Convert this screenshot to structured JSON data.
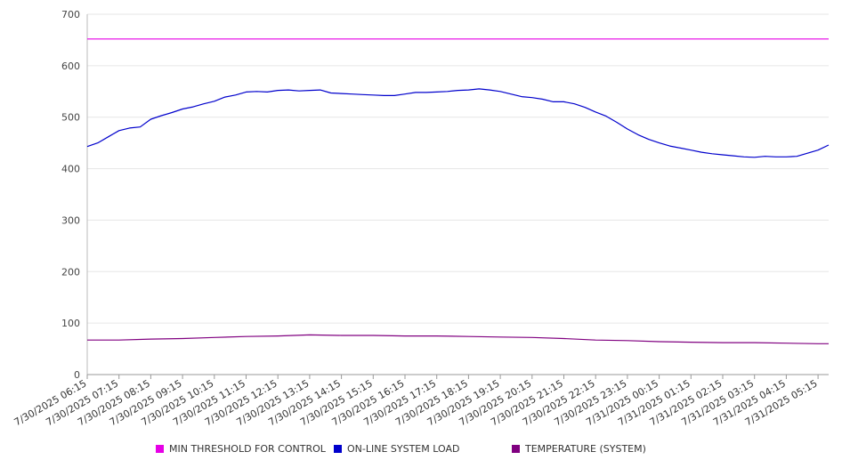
{
  "chart_data": {
    "type": "line",
    "title": "",
    "xlabel": "",
    "ylabel": "",
    "ylim": [
      0,
      700
    ],
    "yticks": [
      0,
      100,
      200,
      300,
      400,
      500,
      600,
      700
    ],
    "grid": true,
    "legend_position": "bottom",
    "x_range": [
      "7/30/2025 06:15",
      "7/31/2025 05:35"
    ],
    "x_tick_labels": [
      "7/30/2025 06:15",
      "7/30/2025 07:15",
      "7/30/2025 08:15",
      "7/30/2025 09:15",
      "7/30/2025 10:15",
      "7/30/2025 11:15",
      "7/30/2025 12:15",
      "7/30/2025 13:15",
      "7/30/2025 14:15",
      "7/30/2025 15:15",
      "7/30/2025 16:15",
      "7/30/2025 17:15",
      "7/30/2025 18:15",
      "7/30/2025 19:15",
      "7/30/2025 20:15",
      "7/30/2025 21:15",
      "7/30/2025 22:15",
      "7/30/2025 23:15",
      "7/31/2025 00:15",
      "7/31/2025 01:15",
      "7/31/2025 02:15",
      "7/31/2025 03:15",
      "7/31/2025 04:15",
      "7/31/2025 05:15"
    ],
    "series": [
      {
        "name": "MIN THRESHOLD FOR CONTROL",
        "color": "#e600e6",
        "points": [
          [
            "7/30/2025 06:15",
            652
          ],
          [
            "7/31/2025 05:35",
            652
          ]
        ]
      },
      {
        "name": "ON-LINE SYSTEM LOAD",
        "color": "#0000cc",
        "points": [
          [
            "7/30/2025 06:15",
            443
          ],
          [
            "7/30/2025 06:35",
            450
          ],
          [
            "7/30/2025 06:55",
            462
          ],
          [
            "7/30/2025 07:15",
            474
          ],
          [
            "7/30/2025 07:35",
            479
          ],
          [
            "7/30/2025 07:55",
            481
          ],
          [
            "7/30/2025 08:15",
            496
          ],
          [
            "7/30/2025 08:35",
            503
          ],
          [
            "7/30/2025 08:55",
            509
          ],
          [
            "7/30/2025 09:15",
            516
          ],
          [
            "7/30/2025 09:35",
            520
          ],
          [
            "7/30/2025 09:55",
            526
          ],
          [
            "7/30/2025 10:15",
            531
          ],
          [
            "7/30/2025 10:35",
            539
          ],
          [
            "7/30/2025 10:55",
            543
          ],
          [
            "7/30/2025 11:15",
            549
          ],
          [
            "7/30/2025 11:35",
            550
          ],
          [
            "7/30/2025 11:55",
            549
          ],
          [
            "7/30/2025 12:15",
            552
          ],
          [
            "7/30/2025 12:35",
            553
          ],
          [
            "7/30/2025 12:55",
            551
          ],
          [
            "7/30/2025 13:15",
            552
          ],
          [
            "7/30/2025 13:35",
            553
          ],
          [
            "7/30/2025 13:55",
            547
          ],
          [
            "7/30/2025 14:15",
            546
          ],
          [
            "7/30/2025 14:35",
            545
          ],
          [
            "7/30/2025 14:55",
            544
          ],
          [
            "7/30/2025 15:15",
            543
          ],
          [
            "7/30/2025 15:35",
            542
          ],
          [
            "7/30/2025 15:55",
            542
          ],
          [
            "7/30/2025 16:15",
            545
          ],
          [
            "7/30/2025 16:35",
            548
          ],
          [
            "7/30/2025 16:55",
            548
          ],
          [
            "7/30/2025 17:15",
            549
          ],
          [
            "7/30/2025 17:35",
            550
          ],
          [
            "7/30/2025 17:55",
            552
          ],
          [
            "7/30/2025 18:15",
            553
          ],
          [
            "7/30/2025 18:35",
            555
          ],
          [
            "7/30/2025 18:55",
            553
          ],
          [
            "7/30/2025 19:15",
            550
          ],
          [
            "7/30/2025 19:35",
            545
          ],
          [
            "7/30/2025 19:55",
            540
          ],
          [
            "7/30/2025 20:15",
            538
          ],
          [
            "7/30/2025 20:35",
            535
          ],
          [
            "7/30/2025 20:55",
            530
          ],
          [
            "7/30/2025 21:15",
            530
          ],
          [
            "7/30/2025 21:35",
            526
          ],
          [
            "7/30/2025 21:55",
            519
          ],
          [
            "7/30/2025 22:15",
            510
          ],
          [
            "7/30/2025 22:35",
            502
          ],
          [
            "7/30/2025 22:55",
            490
          ],
          [
            "7/30/2025 23:15",
            477
          ],
          [
            "7/30/2025 23:35",
            466
          ],
          [
            "7/30/2025 23:55",
            457
          ],
          [
            "7/31/2025 00:15",
            450
          ],
          [
            "7/31/2025 00:35",
            444
          ],
          [
            "7/31/2025 00:55",
            440
          ],
          [
            "7/31/2025 01:15",
            436
          ],
          [
            "7/31/2025 01:35",
            432
          ],
          [
            "7/31/2025 01:55",
            429
          ],
          [
            "7/31/2025 02:15",
            427
          ],
          [
            "7/31/2025 02:35",
            425
          ],
          [
            "7/31/2025 02:55",
            423
          ],
          [
            "7/31/2025 03:15",
            422
          ],
          [
            "7/31/2025 03:35",
            424
          ],
          [
            "7/31/2025 03:55",
            423
          ],
          [
            "7/31/2025 04:15",
            423
          ],
          [
            "7/31/2025 04:35",
            424
          ],
          [
            "7/31/2025 04:55",
            430
          ],
          [
            "7/31/2025 05:15",
            436
          ],
          [
            "7/31/2025 05:35",
            446
          ]
        ]
      },
      {
        "name": "TEMPERATURE (SYSTEM)",
        "color": "#800080",
        "points": [
          [
            "7/30/2025 06:15",
            67
          ],
          [
            "7/30/2025 07:15",
            67
          ],
          [
            "7/30/2025 08:15",
            69
          ],
          [
            "7/30/2025 09:15",
            70
          ],
          [
            "7/30/2025 10:15",
            72
          ],
          [
            "7/30/2025 11:15",
            74
          ],
          [
            "7/30/2025 12:15",
            75
          ],
          [
            "7/30/2025 13:15",
            77
          ],
          [
            "7/30/2025 14:15",
            76
          ],
          [
            "7/30/2025 15:15",
            76
          ],
          [
            "7/30/2025 16:15",
            75
          ],
          [
            "7/30/2025 17:15",
            75
          ],
          [
            "7/30/2025 18:15",
            74
          ],
          [
            "7/30/2025 19:15",
            73
          ],
          [
            "7/30/2025 20:15",
            72
          ],
          [
            "7/30/2025 21:15",
            70
          ],
          [
            "7/30/2025 22:15",
            67
          ],
          [
            "7/30/2025 23:15",
            66
          ],
          [
            "7/31/2025 00:15",
            64
          ],
          [
            "7/31/2025 01:15",
            63
          ],
          [
            "7/31/2025 02:15",
            62
          ],
          [
            "7/31/2025 03:15",
            62
          ],
          [
            "7/31/2025 04:15",
            61
          ],
          [
            "7/31/2025 05:15",
            60
          ],
          [
            "7/31/2025 05:35",
            60
          ]
        ]
      }
    ]
  }
}
